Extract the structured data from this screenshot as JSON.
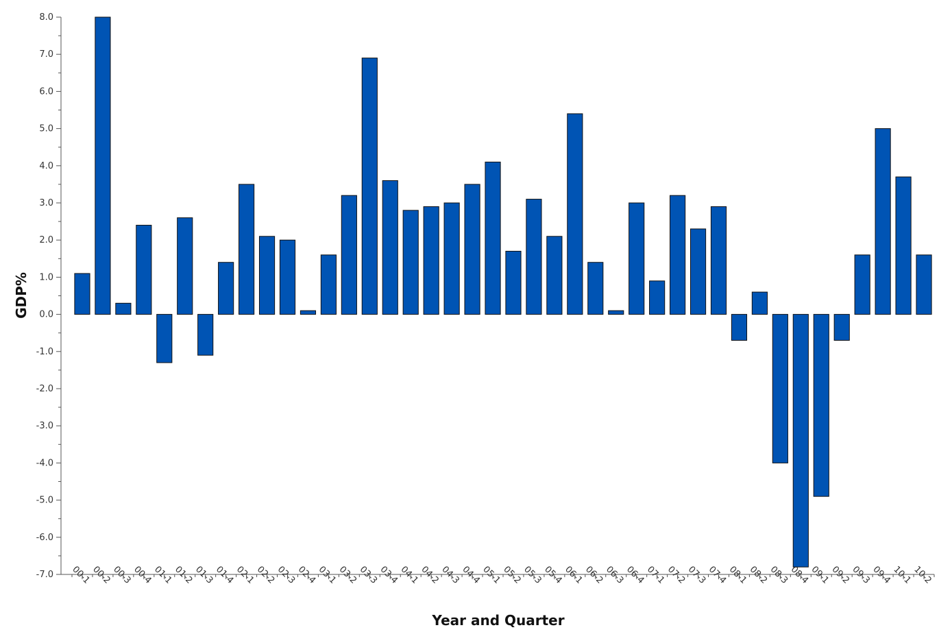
{
  "chart_data": {
    "type": "bar",
    "xlabel": "Year and Quarter",
    "ylabel": "GDP%",
    "ylim": [
      -7.0,
      8.0
    ],
    "y_ticks": [
      "8.0",
      "7.0",
      "6.0",
      "5.0",
      "4.0",
      "3.0",
      "2.0",
      "1.0",
      "0.0",
      "-1.0",
      "-2.0",
      "-3.0",
      "-4.0",
      "-5.0",
      "-6.0",
      "-7.0"
    ],
    "grid": false,
    "categories": [
      "00-1",
      "00-2",
      "00-3",
      "00-4",
      "01-1",
      "01-2",
      "01-3",
      "01-4",
      "02-1",
      "02-2",
      "02-3",
      "02-4",
      "03-1",
      "03-2",
      "03-3",
      "03-4",
      "04-1",
      "04-2",
      "04-3",
      "04-4",
      "05-1",
      "05-2",
      "05-3",
      "05-4",
      "06-1",
      "06-2",
      "06-3",
      "06-4",
      "07-1",
      "07-2",
      "07-3",
      "07-4",
      "08-1",
      "08-2",
      "08-3",
      "08-4",
      "09-1",
      "09-2",
      "09-3",
      "09-4",
      "10-1",
      "10-2"
    ],
    "values": [
      1.1,
      8.0,
      0.3,
      2.4,
      -1.3,
      2.6,
      -1.1,
      1.4,
      3.5,
      2.1,
      2.0,
      0.1,
      1.6,
      3.2,
      6.9,
      3.6,
      2.8,
      2.9,
      3.0,
      3.5,
      4.1,
      1.7,
      3.1,
      2.1,
      5.4,
      1.4,
      0.1,
      3.0,
      0.9,
      3.2,
      2.3,
      2.9,
      -0.7,
      0.6,
      -4.0,
      -6.8,
      -4.9,
      -0.7,
      1.6,
      5.0,
      3.7,
      1.6
    ],
    "bar_color": "#0054b4"
  }
}
